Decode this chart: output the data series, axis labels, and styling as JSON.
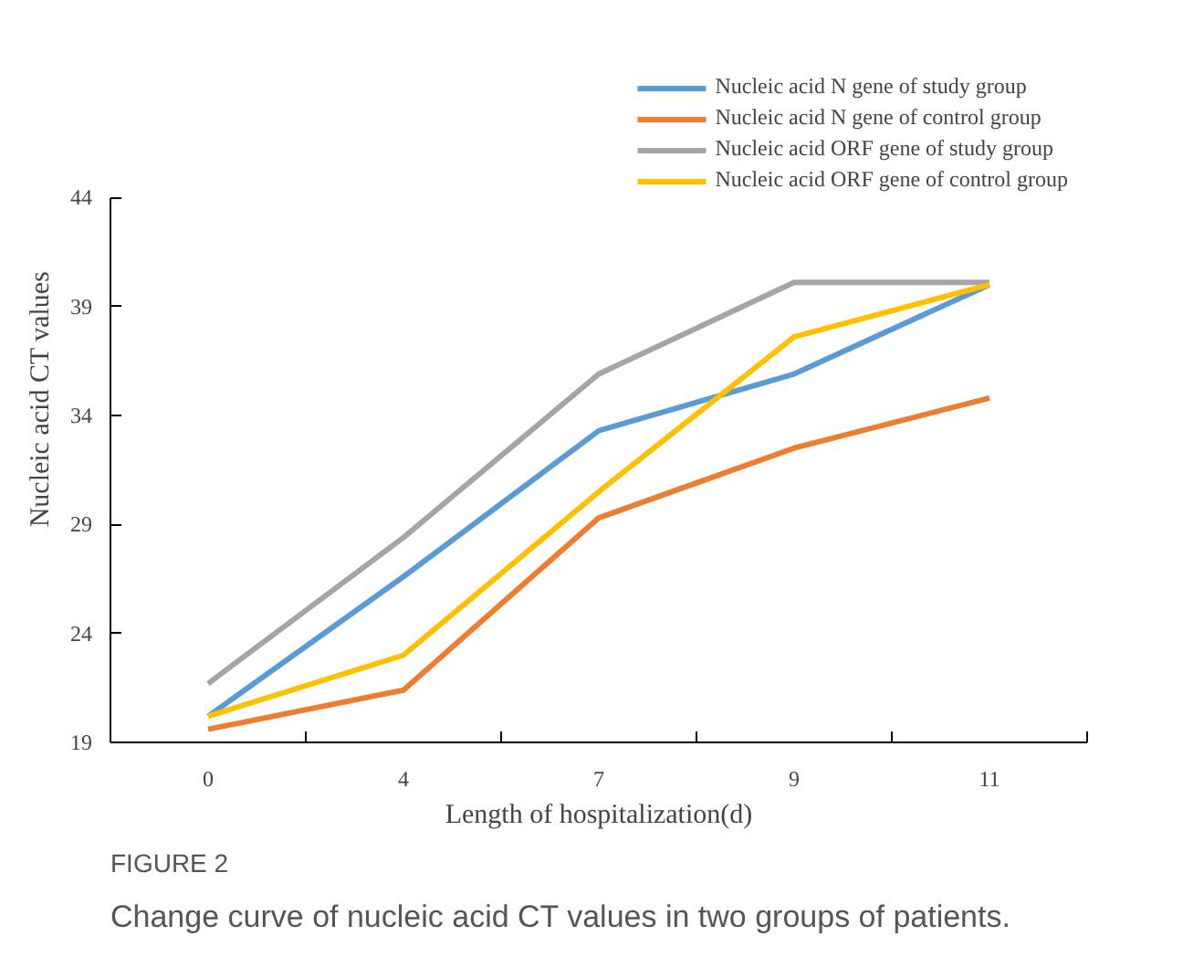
{
  "chart_data": {
    "type": "line",
    "xlabel": "Length of hospitalization(d)",
    "ylabel": "Nucleic acid CT values",
    "categories": [
      "0",
      "4",
      "7",
      "9",
      "11"
    ],
    "series": [
      {
        "name": "Nucleic acid N gene of study group",
        "color": "#5b9bd5",
        "values": [
          20.2,
          26.6,
          33.3,
          35.9,
          40.0
        ]
      },
      {
        "name": "Nucleic acid N gene of control group",
        "color": "#ed7d31",
        "values": [
          19.6,
          21.4,
          29.3,
          32.5,
          34.8
        ]
      },
      {
        "name": "Nucleic acid ORF gene of study group",
        "color": "#a5a5a5",
        "values": [
          21.7,
          28.4,
          35.9,
          40.1,
          40.1
        ]
      },
      {
        "name": "Nucleic acid ORF gene of control group",
        "color": "#ffc000",
        "values": [
          20.2,
          23.0,
          30.5,
          37.6,
          40.0
        ]
      }
    ],
    "ylim": [
      19,
      44
    ],
    "yticks": [
      19,
      24,
      29,
      34,
      39,
      44
    ],
    "grid": false,
    "legend": "top right",
    "marker": "none",
    "annotations": [
      "FIGURE 2",
      "Change curve of nucleic acid CT values in two groups of patients."
    ]
  }
}
